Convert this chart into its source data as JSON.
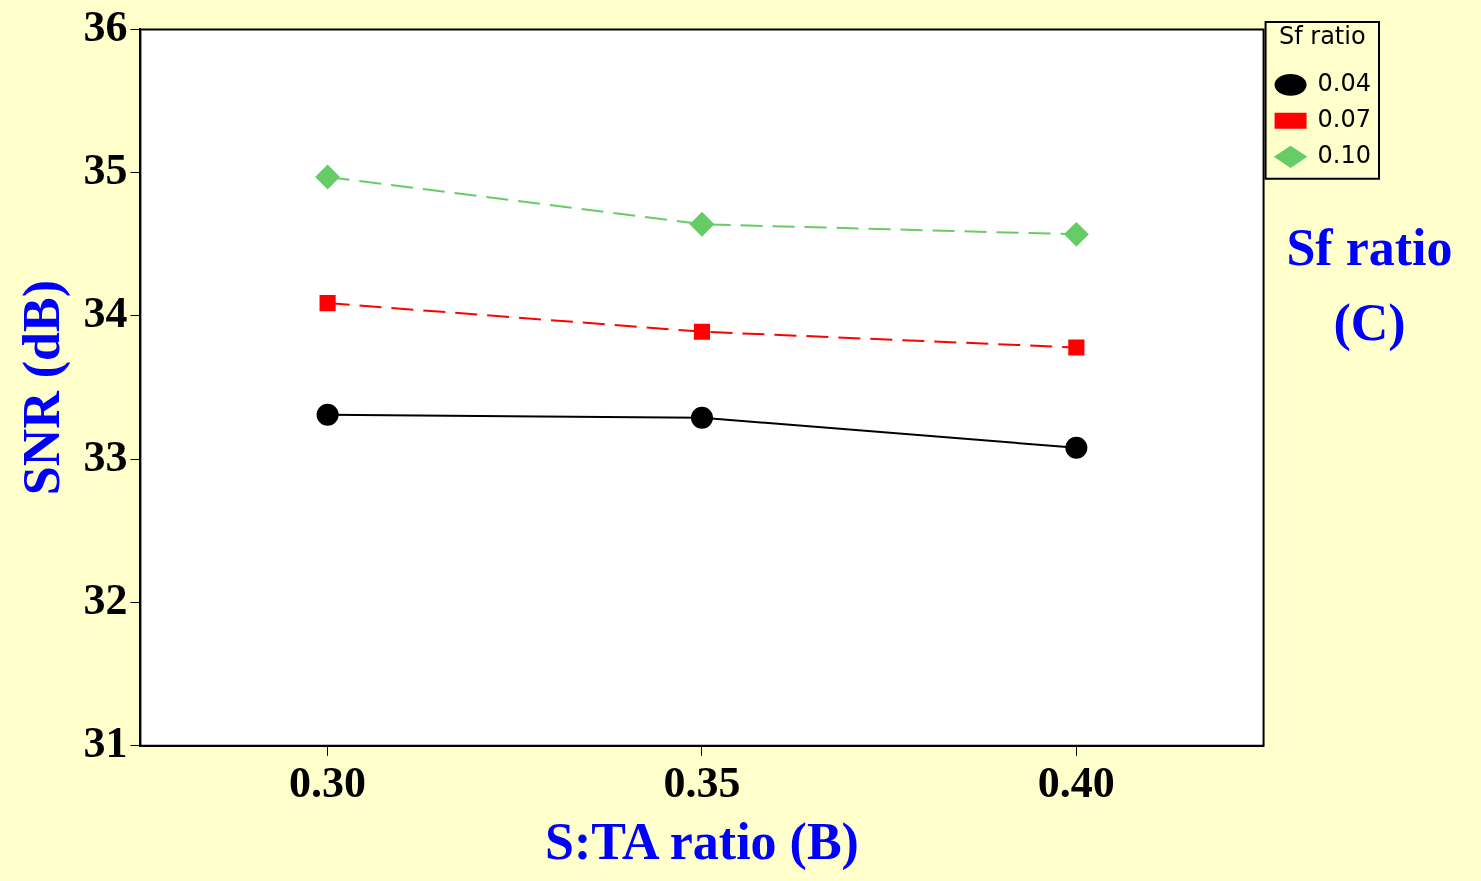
{
  "chart_data": {
    "type": "line",
    "xlabel": "S:TA ratio (B)",
    "ylabel": "SNR (dB)",
    "legend_title": "Sf ratio",
    "annotations": [
      "Sf ratio (C)"
    ],
    "x": [
      0.3,
      0.35,
      0.4
    ],
    "series": [
      {
        "name": "0.04",
        "color": "#000000",
        "values": [
          33.31,
          33.29,
          33.08
        ],
        "marker": "circle",
        "line_style": "solid"
      },
      {
        "name": "0.07",
        "color": "#ff0000",
        "values": [
          34.09,
          33.89,
          33.78
        ],
        "marker": "square",
        "line_style": "dashed"
      },
      {
        "name": "0.10",
        "color": "#66cc66",
        "values": [
          34.97,
          34.64,
          34.57
        ],
        "marker": "diamond",
        "line_style": "dashed"
      }
    ],
    "xlim": [
      0.275,
      0.425
    ],
    "xticks": [
      {
        "value": 0.3,
        "label": "0.30"
      },
      {
        "value": 0.35,
        "label": "0.35"
      },
      {
        "value": 0.4,
        "label": "0.40"
      }
    ],
    "ylim": [
      31,
      36
    ],
    "yticks": [
      31,
      32,
      33,
      34,
      35,
      36
    ],
    "grid": false,
    "legend": "top right"
  }
}
